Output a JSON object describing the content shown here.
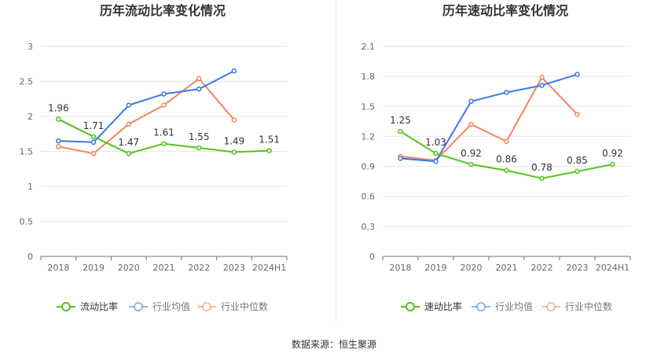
{
  "source_text": "数据来源：恒生聚源",
  "colors": {
    "company": "#52c41a",
    "industry_avg": "#3b78e7",
    "industry_median": "#f4845f",
    "grid": "#e6e6f0",
    "axis_text": "#666666",
    "label_text": "#333333"
  },
  "chart_data": [
    {
      "type": "line",
      "title": "历年流动比率变化情况",
      "categories": [
        "2018",
        "2019",
        "2020",
        "2021",
        "2022",
        "2023",
        "2024H1"
      ],
      "ylim": [
        0,
        3
      ],
      "yticks": [
        "0",
        "0.5",
        "1",
        "1.5",
        "2",
        "2.5",
        "3"
      ],
      "grid": true,
      "legend_position": "bottom",
      "series": [
        {
          "name": "流动比率",
          "color": "#52c41a",
          "labeled": true,
          "values": [
            1.96,
            1.71,
            1.47,
            1.61,
            1.55,
            1.49,
            1.51
          ],
          "labels": [
            "1.96",
            "1.71",
            "1.47",
            "1.61",
            "1.55",
            "1.49",
            "1.51"
          ]
        },
        {
          "name": "行业均值",
          "color": "#3b78e7",
          "labeled": false,
          "values": [
            1.65,
            1.63,
            2.16,
            2.32,
            2.39,
            2.65,
            null
          ]
        },
        {
          "name": "行业中位数",
          "color": "#f4845f",
          "labeled": false,
          "values": [
            1.57,
            1.47,
            1.89,
            2.16,
            2.54,
            1.95,
            null
          ]
        }
      ]
    },
    {
      "type": "line",
      "title": "历年速动比率变化情况",
      "categories": [
        "2018",
        "2019",
        "2020",
        "2021",
        "2022",
        "2023",
        "2024H1"
      ],
      "ylim": [
        0,
        2.1
      ],
      "yticks": [
        "0",
        "0.3",
        "0.6",
        "0.9",
        "1.2",
        "1.5",
        "1.8",
        "2.1"
      ],
      "grid": true,
      "legend_position": "bottom",
      "series": [
        {
          "name": "速动比率",
          "color": "#52c41a",
          "labeled": true,
          "values": [
            1.25,
            1.03,
            0.92,
            0.86,
            0.78,
            0.85,
            0.92
          ],
          "labels": [
            "1.25",
            "1.03",
            "0.92",
            "0.86",
            "0.78",
            "0.85",
            "0.92"
          ]
        },
        {
          "name": "行业均值",
          "color": "#3b78e7",
          "labeled": false,
          "values": [
            0.98,
            0.95,
            1.55,
            1.64,
            1.71,
            1.82,
            null
          ]
        },
        {
          "name": "行业中位数",
          "color": "#f4845f",
          "labeled": false,
          "values": [
            1.0,
            0.96,
            1.32,
            1.15,
            1.79,
            1.42,
            null
          ]
        }
      ]
    }
  ]
}
